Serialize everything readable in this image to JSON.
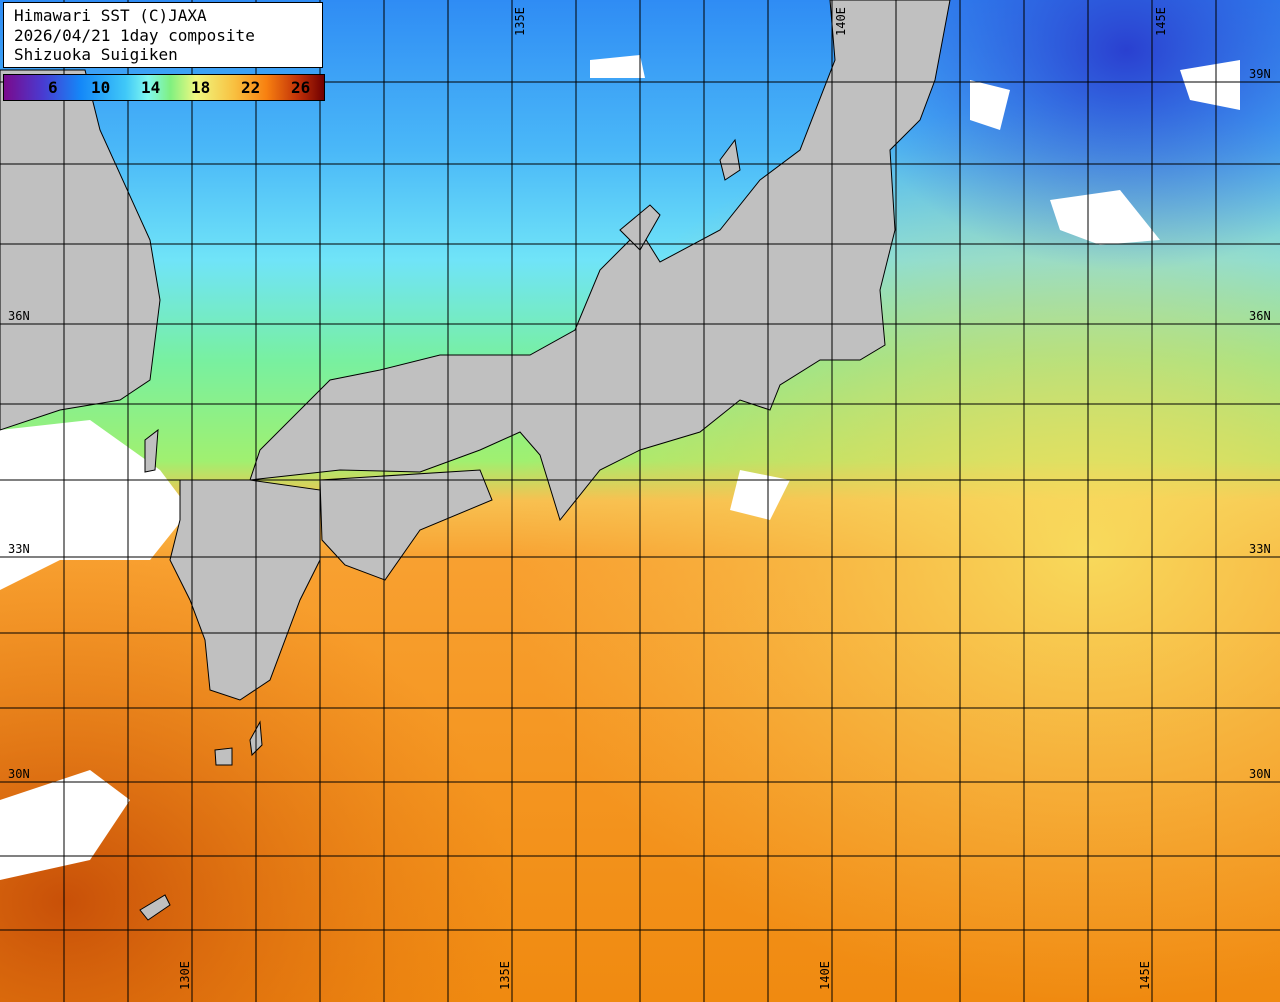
{
  "title_box": {
    "line1": "Himawari SST (C)JAXA",
    "line2": "2026/04/21 1day composite",
    "line3": "Shizuoka Suigiken"
  },
  "colorbar": {
    "unit_hint": "°C",
    "ticks": [
      "6",
      "10",
      "14",
      "18",
      "22",
      "26"
    ],
    "colors": [
      "#7a0a8c",
      "#1488f8",
      "#80f8f0",
      "#80f080",
      "#f0f880",
      "#f88010",
      "#700000"
    ]
  },
  "map": {
    "land_color": "#c0c0c0",
    "cloud_color": "#ffffff",
    "latitude_labels": [
      "39N",
      "36N",
      "33N",
      "30N"
    ],
    "longitude_labels_top": [
      "135E",
      "140E",
      "145E"
    ],
    "longitude_labels_bottom": [
      "130E",
      "135E",
      "140E",
      "145E"
    ]
  }
}
